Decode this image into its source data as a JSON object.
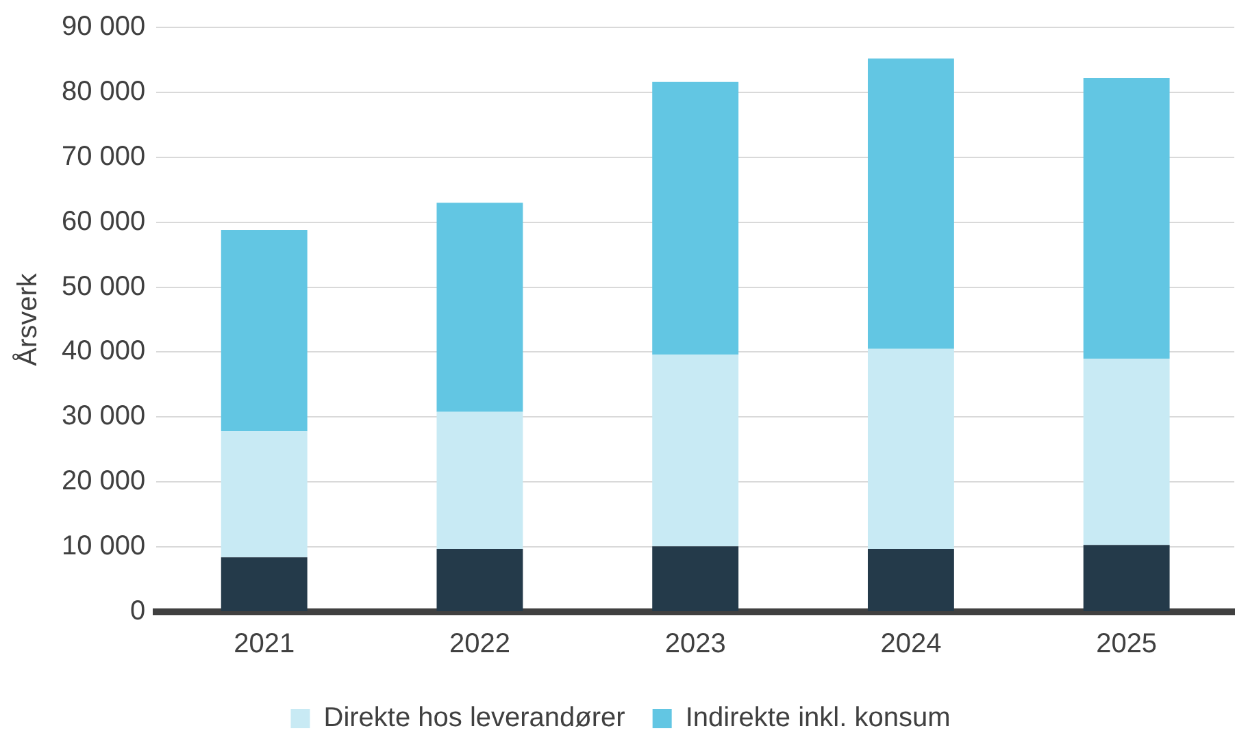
{
  "chart_data": {
    "type": "bar",
    "stacked": true,
    "ylabel": "Årsverk",
    "categories": [
      "2021",
      "2022",
      "2023",
      "2024",
      "2025"
    ],
    "series": [
      {
        "color": "#243a4a",
        "values": [
          8400,
          9700,
          10100,
          9700,
          10300
        ]
      },
      {
        "name": "Direkte hos leverandører",
        "color": "#c8eaf4",
        "values": [
          19400,
          21100,
          29500,
          30800,
          28700
        ]
      },
      {
        "name": "Indirekte inkl. konsum",
        "color": "#62c6e3",
        "values": [
          31000,
          32200,
          42000,
          44700,
          43200
        ]
      }
    ],
    "ylim": [
      0,
      90000
    ],
    "yticks": [
      {
        "value": 0,
        "label": "0"
      },
      {
        "value": 10000,
        "label": "10 000"
      },
      {
        "value": 20000,
        "label": "20 000"
      },
      {
        "value": 30000,
        "label": "30 000"
      },
      {
        "value": 40000,
        "label": "40 000"
      },
      {
        "value": 50000,
        "label": "50 000"
      },
      {
        "value": 60000,
        "label": "60 000"
      },
      {
        "value": 70000,
        "label": "70 000"
      },
      {
        "value": 80000,
        "label": "80 000"
      },
      {
        "value": 90000,
        "label": "90 000"
      }
    ],
    "grid": "y",
    "legend": "bottom"
  }
}
